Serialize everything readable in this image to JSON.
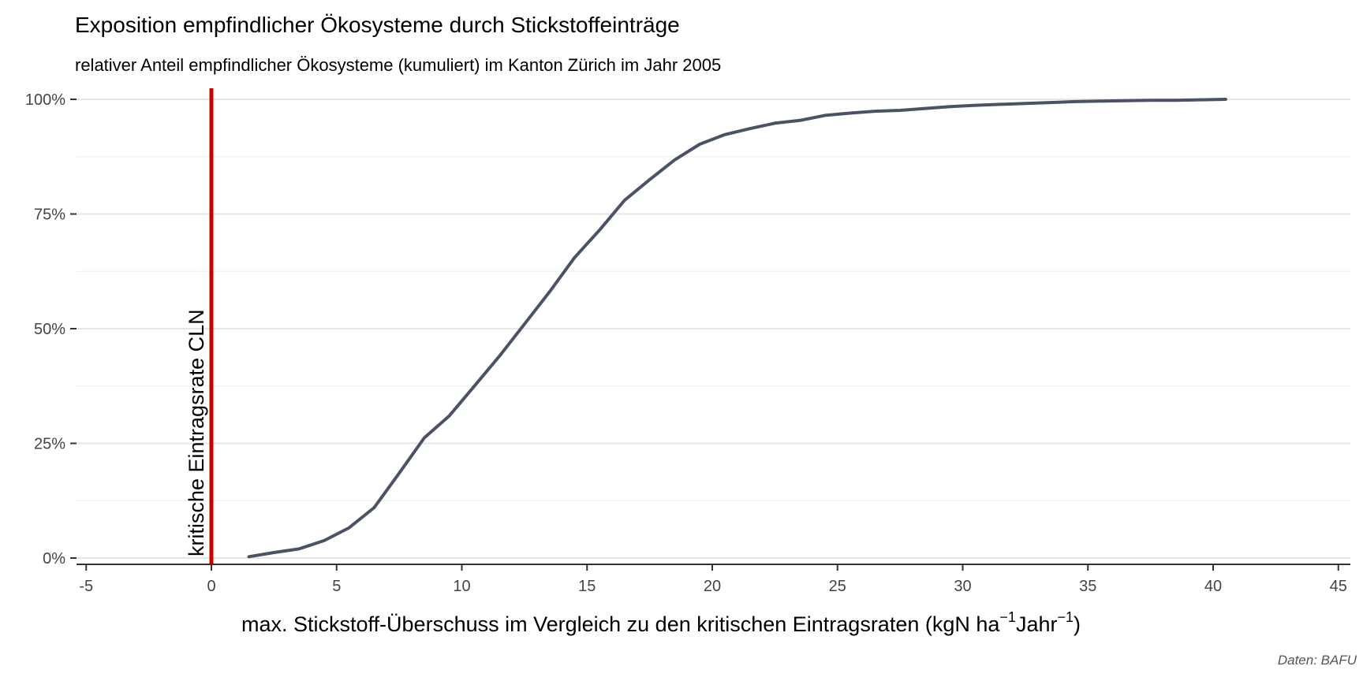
{
  "chart_data": {
    "type": "line",
    "title": "Exposition empfindlicher Ökosysteme durch Stickstoffeinträge",
    "subtitle": "relativer Anteil empfindlicher Ökosysteme (kumuliert) im Kanton Zürich im Jahr 2005",
    "xlabel": {
      "main": "max. Stickstoff-Überschuss im Vergleich zu den kritischen Eintragsraten (kgN ha",
      "sup1": "−1",
      "mid": "Jahr",
      "sup2": "−1",
      "end": ")"
    },
    "ylabel": "",
    "caption": "Daten: BAFU",
    "xlim": [
      -5,
      45
    ],
    "ylim": [
      0,
      1
    ],
    "x_ticks": [
      -5,
      0,
      5,
      10,
      15,
      20,
      25,
      30,
      35,
      40,
      45
    ],
    "x_tick_labels": [
      "-5",
      "0",
      "5",
      "10",
      "15",
      "20",
      "25",
      "30",
      "35",
      "40",
      "45"
    ],
    "y_ticks": [
      0,
      0.25,
      0.5,
      0.75,
      1
    ],
    "y_tick_labels": [
      "0%",
      "25%",
      "50%",
      "75%",
      "100%"
    ],
    "grid": true,
    "reference_line": {
      "x": 0,
      "label": "kritische Eintragsrate CLN",
      "color": "#cc0000"
    },
    "series": [
      {
        "color": "#4a5366",
        "x": [
          1.5,
          2.5,
          3.5,
          4.5,
          5.5,
          6.5,
          7.5,
          8.5,
          9.5,
          10.5,
          11.5,
          12.5,
          13.5,
          14.5,
          15.5,
          16.5,
          17.5,
          18.5,
          19.5,
          20.5,
          21.5,
          22.5,
          23.5,
          24.5,
          25.5,
          26.5,
          27.5,
          28.5,
          29.5,
          30.5,
          31.5,
          32.5,
          33.5,
          34.5,
          35.5,
          36.5,
          37.5,
          38.5,
          39.5,
          40.5
        ],
        "y": [
          0.003,
          0.012,
          0.02,
          0.038,
          0.066,
          0.11,
          0.185,
          0.262,
          0.31,
          0.375,
          0.44,
          0.51,
          0.58,
          0.655,
          0.715,
          0.78,
          0.825,
          0.868,
          0.902,
          0.923,
          0.936,
          0.948,
          0.954,
          0.965,
          0.97,
          0.974,
          0.976,
          0.98,
          0.984,
          0.987,
          0.989,
          0.991,
          0.993,
          0.995,
          0.996,
          0.997,
          0.998,
          0.998,
          0.999,
          1.0
        ]
      }
    ]
  }
}
